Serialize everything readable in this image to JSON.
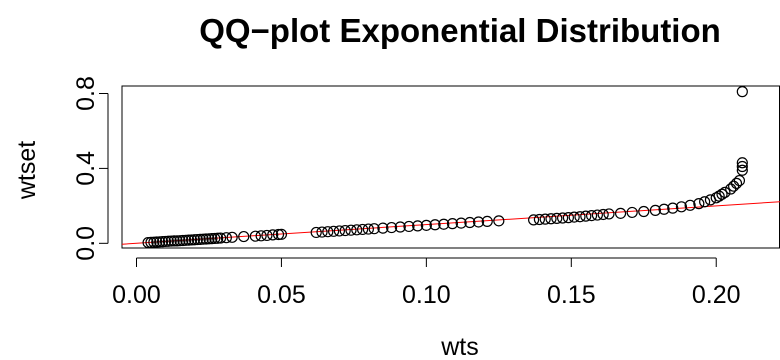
{
  "chart_data": {
    "type": "scatter",
    "title": "QQ−plot Exponential Distribution",
    "xlabel": "wts",
    "ylabel": "wtset",
    "xlim": [
      -0.005,
      0.222
    ],
    "ylim": [
      -0.025,
      0.84
    ],
    "x_ticks": [
      0.0,
      0.05,
      0.1,
      0.15,
      0.2
    ],
    "x_tick_labels": [
      "0.00",
      "0.05",
      "0.10",
      "0.15",
      "0.20"
    ],
    "y_ticks": [
      0.0,
      0.4,
      0.8
    ],
    "y_tick_labels": [
      "0.0",
      "0.4",
      "0.8"
    ],
    "grid": false,
    "legend": "none",
    "colors": {
      "points": "#000000",
      "reference_line": "#ff0000",
      "axes": "#000000"
    },
    "reference_line": {
      "slope": 1.0,
      "intercept": 0.0
    },
    "points": [
      [
        0.004,
        0.004
      ],
      [
        0.005,
        0.005
      ],
      [
        0.006,
        0.006
      ],
      [
        0.007,
        0.007
      ],
      [
        0.008,
        0.008
      ],
      [
        0.009,
        0.009
      ],
      [
        0.01,
        0.01
      ],
      [
        0.011,
        0.011
      ],
      [
        0.012,
        0.012
      ],
      [
        0.013,
        0.013
      ],
      [
        0.014,
        0.013
      ],
      [
        0.015,
        0.014
      ],
      [
        0.016,
        0.015
      ],
      [
        0.017,
        0.016
      ],
      [
        0.018,
        0.017
      ],
      [
        0.019,
        0.018
      ],
      [
        0.02,
        0.019
      ],
      [
        0.021,
        0.02
      ],
      [
        0.022,
        0.021
      ],
      [
        0.023,
        0.022
      ],
      [
        0.024,
        0.023
      ],
      [
        0.025,
        0.024
      ],
      [
        0.026,
        0.025
      ],
      [
        0.027,
        0.026
      ],
      [
        0.028,
        0.027
      ],
      [
        0.029,
        0.028
      ],
      [
        0.031,
        0.03
      ],
      [
        0.033,
        0.032
      ],
      [
        0.037,
        0.036
      ],
      [
        0.041,
        0.038
      ],
      [
        0.043,
        0.04
      ],
      [
        0.045,
        0.042
      ],
      [
        0.047,
        0.045
      ],
      [
        0.049,
        0.047
      ],
      [
        0.05,
        0.048
      ],
      [
        0.062,
        0.058
      ],
      [
        0.064,
        0.06
      ],
      [
        0.066,
        0.062
      ],
      [
        0.068,
        0.064
      ],
      [
        0.07,
        0.066
      ],
      [
        0.072,
        0.068
      ],
      [
        0.074,
        0.07
      ],
      [
        0.076,
        0.072
      ],
      [
        0.078,
        0.074
      ],
      [
        0.08,
        0.076
      ],
      [
        0.082,
        0.078
      ],
      [
        0.085,
        0.081
      ],
      [
        0.088,
        0.084
      ],
      [
        0.091,
        0.087
      ],
      [
        0.094,
        0.09
      ],
      [
        0.097,
        0.093
      ],
      [
        0.1,
        0.096
      ],
      [
        0.103,
        0.099
      ],
      [
        0.106,
        0.102
      ],
      [
        0.109,
        0.105
      ],
      [
        0.112,
        0.108
      ],
      [
        0.115,
        0.111
      ],
      [
        0.118,
        0.114
      ],
      [
        0.121,
        0.117
      ],
      [
        0.125,
        0.12
      ],
      [
        0.137,
        0.125
      ],
      [
        0.139,
        0.127
      ],
      [
        0.141,
        0.129
      ],
      [
        0.143,
        0.131
      ],
      [
        0.145,
        0.133
      ],
      [
        0.147,
        0.135
      ],
      [
        0.149,
        0.137
      ],
      [
        0.151,
        0.14
      ],
      [
        0.153,
        0.142
      ],
      [
        0.155,
        0.145
      ],
      [
        0.157,
        0.148
      ],
      [
        0.159,
        0.151
      ],
      [
        0.161,
        0.154
      ],
      [
        0.163,
        0.157
      ],
      [
        0.167,
        0.16
      ],
      [
        0.171,
        0.165
      ],
      [
        0.175,
        0.17
      ],
      [
        0.179,
        0.176
      ],
      [
        0.182,
        0.182
      ],
      [
        0.185,
        0.188
      ],
      [
        0.188,
        0.195
      ],
      [
        0.191,
        0.203
      ],
      [
        0.194,
        0.212
      ],
      [
        0.196,
        0.222
      ],
      [
        0.198,
        0.232
      ],
      [
        0.2,
        0.243
      ],
      [
        0.201,
        0.252
      ],
      [
        0.202,
        0.262
      ],
      [
        0.203,
        0.272
      ],
      [
        0.205,
        0.29
      ],
      [
        0.206,
        0.305
      ],
      [
        0.207,
        0.32
      ],
      [
        0.208,
        0.335
      ],
      [
        0.209,
        0.39
      ],
      [
        0.209,
        0.41
      ],
      [
        0.209,
        0.43
      ],
      [
        0.209,
        0.81
      ]
    ]
  }
}
